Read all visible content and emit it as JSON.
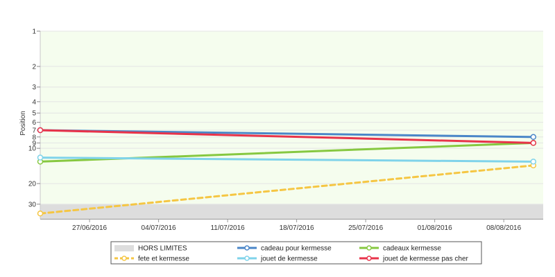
{
  "chart_data": {
    "type": "line",
    "title": "",
    "xlabel": "",
    "ylabel": "Position",
    "y_scale": "log",
    "y_inverted": true,
    "ylim": [
      1,
      40
    ],
    "y_ticks": [
      1,
      2,
      3,
      4,
      5,
      6,
      7,
      8,
      9,
      10,
      20,
      30
    ],
    "x_ticks": [
      "27/06/2016",
      "04/07/2016",
      "11/07/2016",
      "18/07/2016",
      "25/07/2016",
      "01/08/2016",
      "08/08/2016"
    ],
    "xlim": [
      "2016-06-22",
      "2016-08-12"
    ],
    "grid": true,
    "legend_placement": "bottom",
    "bands": [
      {
        "name": "HORS LIMITES",
        "from": 30,
        "to": 40,
        "color": "#dddddd"
      }
    ],
    "plot_background": "#f5fdee",
    "series": [
      {
        "name": "cadeau pour kermesse",
        "color": "#4a86c8",
        "dashed": false,
        "x": [
          "2016-06-22",
          "2016-08-11"
        ],
        "y": [
          7,
          8
        ]
      },
      {
        "name": "cadeaux kermesse",
        "color": "#86c840",
        "dashed": false,
        "x": [
          "2016-06-22",
          "2016-08-11"
        ],
        "y": [
          13,
          9
        ]
      },
      {
        "name": "fete et kermesse",
        "color": "#f5c643",
        "dashed": true,
        "x": [
          "2016-06-22",
          "2016-08-11"
        ],
        "y": [
          36,
          14
        ]
      },
      {
        "name": "jouet de kermesse",
        "color": "#7fd3ea",
        "dashed": false,
        "x": [
          "2016-06-22",
          "2016-08-11"
        ],
        "y": [
          12,
          13
        ]
      },
      {
        "name": "jouet de kermesse pas cher",
        "color": "#e8334a",
        "dashed": false,
        "x": [
          "2016-06-22",
          "2016-08-11"
        ],
        "y": [
          7,
          9
        ]
      }
    ]
  }
}
